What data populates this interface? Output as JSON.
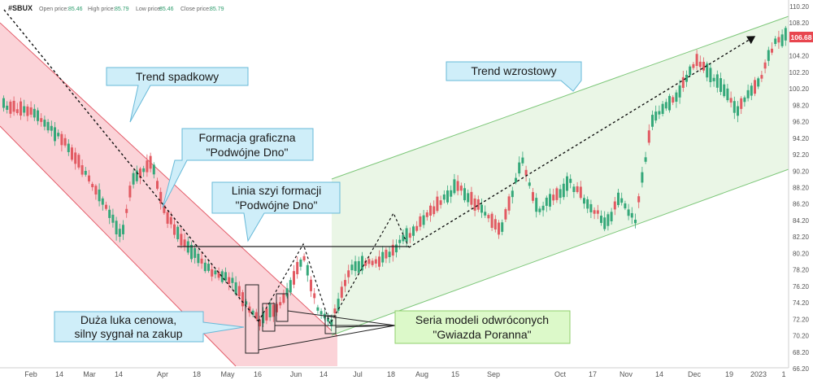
{
  "header": {
    "symbol": "#SBUX",
    "open_label": "Open price:",
    "open_value": "85.46",
    "high_label": "High price:",
    "high_value": "85.79",
    "low_label": "Low price:",
    "low_value": "85.46",
    "close_label": "Close price:",
    "close_value": "85.79"
  },
  "callouts": {
    "trend_down": "Trend spadkowy",
    "double_bottom_1": "Formacja graficzna",
    "double_bottom_2": "\"Podwójne Dno\"",
    "neckline_1": "Linia szyi formacji",
    "neckline_2": "\"Podwójne Dno\"",
    "gap_1": "Duża luka cenowa,",
    "gap_2": "silny sygnał na zakup",
    "trend_up": "Trend wzrostowy",
    "morning_star_1": "Seria modeli odwróconych",
    "morning_star_2": "\"Gwiazda Poranna\""
  },
  "colors": {
    "up_candle": "#35a87a",
    "down_candle": "#e25a62",
    "down_channel_fill": "#fbd3d8",
    "down_channel_line": "#e35d6a",
    "up_channel_fill": "#eaf6e6",
    "up_channel_line": "#7ec77a",
    "callout_blue": "#cfeef9",
    "callout_green": "#dcf9c9",
    "price_badge": "#e8464f"
  },
  "chart_data": {
    "type": "candlestick",
    "price_axis_labels": [
      "110.20",
      "108.20",
      "106.68",
      "104.20",
      "102.20",
      "100.20",
      "98.20",
      "96.20",
      "94.20",
      "92.20",
      "90.20",
      "88.20",
      "86.20",
      "84.20",
      "82.20",
      "80.20",
      "78.20",
      "76.20",
      "74.20",
      "72.20",
      "70.20",
      "68.20",
      "66.20"
    ],
    "current_price": "106.68",
    "ylim": [
      66.2,
      110.2
    ],
    "time_axis_labels": [
      "Feb",
      "14",
      "Mar",
      "14",
      "Apr",
      "18",
      "May",
      "16",
      "Jun",
      "14",
      "Jul",
      "18",
      "Aug",
      "15",
      "Sep",
      "Oct",
      "17",
      "Nov",
      "14",
      "Dec",
      "19",
      "2023",
      "1"
    ],
    "neckline_price": 81.2,
    "legend": "none",
    "grid": false
  }
}
